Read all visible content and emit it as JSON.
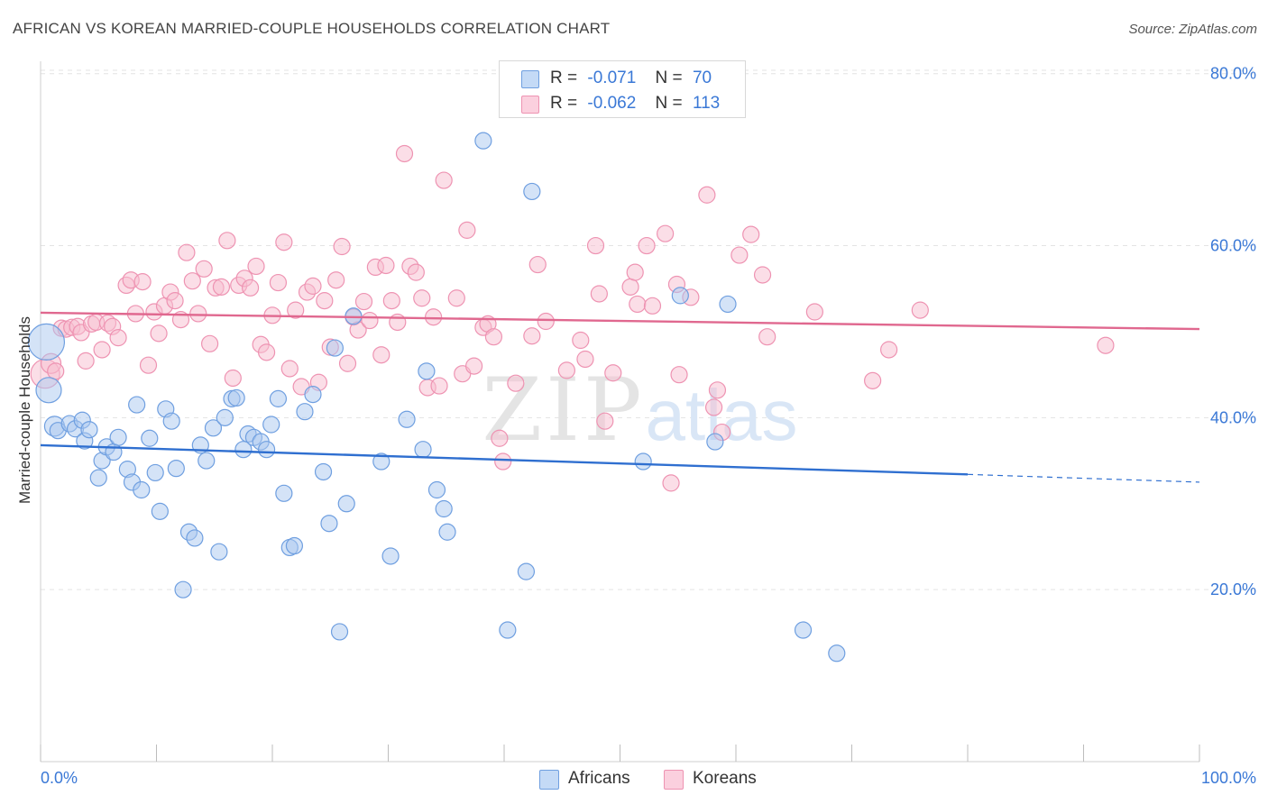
{
  "title": "AFRICAN VS KOREAN MARRIED-COUPLE HOUSEHOLDS CORRELATION CHART",
  "source": "Source: ZipAtlas.com",
  "watermark": {
    "zip": "ZIP",
    "atlas": "atlas"
  },
  "legend": {
    "africans": {
      "r_label": "R =",
      "r_value": "-0.071",
      "n_label": "N =",
      "n_value": "70"
    },
    "koreans": {
      "r_label": "R =",
      "r_value": "-0.062",
      "n_label": "N =",
      "n_value": "113"
    }
  },
  "colors": {
    "africans_fill": "#a9c8f0",
    "africans_stroke": "#6f9fe0",
    "africans_line": "#2f6fd0",
    "koreans_fill": "#f7bdd0",
    "koreans_stroke": "#ee93b2",
    "koreans_line": "#e0688f",
    "grid": "#e3e3e3",
    "axis_text": "#3a78d6"
  },
  "chart_data": {
    "type": "scatter",
    "title": "AFRICAN VS KOREAN MARRIED-COUPLE HOUSEHOLDS CORRELATION CHART",
    "xlabel": "",
    "ylabel": "Married-couple Households",
    "xlim": [
      0,
      100
    ],
    "ylim": [
      0,
      85
    ],
    "x_tick_labels": [
      "0.0%",
      "100.0%"
    ],
    "y_ticks": [
      20,
      40,
      60,
      80
    ],
    "y_tick_labels": [
      "20.0%",
      "40.0%",
      "60.0%",
      "80.0%"
    ],
    "grid": true,
    "legend_position": "top-center",
    "series": [
      {
        "name": "Africans",
        "r": -0.071,
        "n": 70,
        "trend": {
          "x0": 0,
          "y0": 36.8,
          "x1": 80,
          "y1": 33.4,
          "dashed_to": 100,
          "dashed_y": 32.5
        },
        "points": [
          [
            0.5,
            48.8,
            20
          ],
          [
            0.7,
            43.2,
            14
          ],
          [
            1.2,
            39.0,
            11
          ],
          [
            1.5,
            38.5,
            9
          ],
          [
            2.5,
            39.3,
            9
          ],
          [
            3.0,
            38.7,
            9
          ],
          [
            3.6,
            39.7,
            9
          ],
          [
            3.8,
            37.3,
            9
          ],
          [
            4.2,
            38.6,
            9
          ],
          [
            5.0,
            33.0,
            9
          ],
          [
            5.3,
            35.0,
            9
          ],
          [
            5.7,
            36.6,
            9
          ],
          [
            6.3,
            36.0,
            9
          ],
          [
            6.7,
            37.7,
            9
          ],
          [
            7.5,
            34.0,
            9
          ],
          [
            7.9,
            32.5,
            9
          ],
          [
            8.3,
            41.5,
            9
          ],
          [
            8.7,
            31.6,
            9
          ],
          [
            9.4,
            37.6,
            9
          ],
          [
            9.9,
            33.6,
            9
          ],
          [
            10.3,
            29.1,
            9
          ],
          [
            10.8,
            41.0,
            9
          ],
          [
            11.3,
            39.6,
            9
          ],
          [
            11.7,
            34.1,
            9
          ],
          [
            12.3,
            20.0,
            9
          ],
          [
            12.8,
            26.7,
            9
          ],
          [
            13.3,
            26.0,
            9
          ],
          [
            13.8,
            36.8,
            9
          ],
          [
            14.3,
            35.0,
            9
          ],
          [
            14.9,
            38.8,
            9
          ],
          [
            15.4,
            24.4,
            9
          ],
          [
            15.9,
            40.0,
            9
          ],
          [
            16.5,
            42.2,
            9
          ],
          [
            16.9,
            42.3,
            9
          ],
          [
            17.5,
            36.3,
            9
          ],
          [
            17.9,
            38.1,
            9
          ],
          [
            18.4,
            37.7,
            9
          ],
          [
            19.0,
            37.2,
            9
          ],
          [
            19.5,
            36.3,
            9
          ],
          [
            19.9,
            39.2,
            9
          ],
          [
            20.5,
            42.2,
            9
          ],
          [
            21.0,
            31.2,
            9
          ],
          [
            21.5,
            24.9,
            9
          ],
          [
            21.9,
            25.1,
            9
          ],
          [
            22.8,
            40.7,
            9
          ],
          [
            23.5,
            42.7,
            9
          ],
          [
            24.4,
            33.7,
            9
          ],
          [
            24.9,
            27.7,
            9
          ],
          [
            25.4,
            48.1,
            9
          ],
          [
            25.8,
            15.1,
            9
          ],
          [
            26.4,
            30.0,
            9
          ],
          [
            27.0,
            51.8,
            9
          ],
          [
            29.4,
            34.9,
            9
          ],
          [
            30.2,
            23.9,
            9
          ],
          [
            31.6,
            39.8,
            9
          ],
          [
            33.0,
            36.3,
            9
          ],
          [
            33.3,
            45.4,
            9
          ],
          [
            34.2,
            31.6,
            9
          ],
          [
            34.8,
            29.4,
            9
          ],
          [
            35.1,
            26.7,
            9
          ],
          [
            38.2,
            72.2,
            9
          ],
          [
            40.3,
            15.3,
            9
          ],
          [
            41.9,
            22.1,
            9
          ],
          [
            42.4,
            66.3,
            9
          ],
          [
            52.0,
            34.9,
            9
          ],
          [
            55.2,
            54.2,
            9
          ],
          [
            58.2,
            37.2,
            9
          ],
          [
            59.3,
            53.2,
            9
          ],
          [
            65.8,
            15.3,
            9
          ],
          [
            68.7,
            12.6,
            9
          ]
        ]
      },
      {
        "name": "Koreans",
        "r": -0.062,
        "n": 113,
        "trend": {
          "x0": 0,
          "y0": 52.2,
          "x1": 100,
          "y1": 50.3
        },
        "points": [
          [
            0.4,
            45.1,
            16
          ],
          [
            0.9,
            46.3,
            11
          ],
          [
            1.3,
            45.4,
            9
          ],
          [
            1.8,
            50.4,
            9
          ],
          [
            2.2,
            50.3,
            9
          ],
          [
            2.7,
            50.5,
            9
          ],
          [
            3.2,
            50.6,
            9
          ],
          [
            3.5,
            49.9,
            9
          ],
          [
            3.9,
            46.6,
            9
          ],
          [
            4.4,
            50.9,
            9
          ],
          [
            4.8,
            51.1,
            9
          ],
          [
            5.3,
            47.9,
            9
          ],
          [
            5.8,
            51.0,
            9
          ],
          [
            6.2,
            50.6,
            9
          ],
          [
            6.7,
            49.3,
            9
          ],
          [
            7.4,
            55.4,
            9
          ],
          [
            7.8,
            56.0,
            9
          ],
          [
            8.2,
            52.1,
            9
          ],
          [
            8.8,
            55.8,
            9
          ],
          [
            9.3,
            46.1,
            9
          ],
          [
            9.8,
            52.3,
            9
          ],
          [
            10.2,
            49.8,
            9
          ],
          [
            10.7,
            53.0,
            9
          ],
          [
            11.2,
            54.6,
            9
          ],
          [
            11.6,
            53.6,
            9
          ],
          [
            12.1,
            51.4,
            9
          ],
          [
            12.6,
            59.2,
            9
          ],
          [
            13.1,
            55.9,
            9
          ],
          [
            13.6,
            52.1,
            9
          ],
          [
            14.1,
            57.3,
            9
          ],
          [
            14.6,
            48.6,
            9
          ],
          [
            15.1,
            55.1,
            9
          ],
          [
            15.6,
            55.2,
            9
          ],
          [
            16.1,
            60.6,
            9
          ],
          [
            16.6,
            44.6,
            9
          ],
          [
            17.1,
            55.4,
            9
          ],
          [
            17.6,
            56.2,
            9
          ],
          [
            18.1,
            55.1,
            9
          ],
          [
            18.6,
            57.6,
            9
          ],
          [
            19.0,
            48.5,
            9
          ],
          [
            19.5,
            47.6,
            9
          ],
          [
            20.0,
            51.9,
            9
          ],
          [
            20.5,
            55.7,
            9
          ],
          [
            21.0,
            60.4,
            9
          ],
          [
            21.5,
            45.7,
            9
          ],
          [
            22.0,
            52.5,
            9
          ],
          [
            22.5,
            43.6,
            9
          ],
          [
            23.0,
            54.6,
            9
          ],
          [
            23.5,
            55.3,
            9
          ],
          [
            24.0,
            44.1,
            9
          ],
          [
            24.5,
            53.6,
            9
          ],
          [
            25.0,
            48.2,
            9
          ],
          [
            25.5,
            56.0,
            9
          ],
          [
            26.0,
            59.9,
            9
          ],
          [
            26.5,
            46.3,
            9
          ],
          [
            27.0,
            51.7,
            9
          ],
          [
            27.4,
            50.2,
            9
          ],
          [
            27.9,
            53.5,
            9
          ],
          [
            28.4,
            51.3,
            9
          ],
          [
            28.9,
            57.5,
            9
          ],
          [
            29.4,
            47.3,
            9
          ],
          [
            29.8,
            57.7,
            9
          ],
          [
            30.3,
            53.6,
            9
          ],
          [
            30.8,
            51.1,
            9
          ],
          [
            31.4,
            70.7,
            9
          ],
          [
            31.9,
            57.6,
            9
          ],
          [
            32.4,
            56.9,
            9
          ],
          [
            32.9,
            53.9,
            9
          ],
          [
            33.4,
            43.5,
            9
          ],
          [
            33.9,
            51.7,
            9
          ],
          [
            34.4,
            43.7,
            9
          ],
          [
            34.8,
            67.6,
            9
          ],
          [
            35.9,
            53.9,
            9
          ],
          [
            36.4,
            45.1,
            9
          ],
          [
            36.8,
            61.8,
            9
          ],
          [
            37.4,
            46.0,
            9
          ],
          [
            38.2,
            50.5,
            9
          ],
          [
            38.6,
            50.9,
            9
          ],
          [
            39.1,
            49.4,
            9
          ],
          [
            39.6,
            37.6,
            9
          ],
          [
            39.9,
            34.9,
            9
          ],
          [
            41.0,
            44.0,
            9
          ],
          [
            42.4,
            49.5,
            9
          ],
          [
            42.9,
            57.8,
            9
          ],
          [
            43.6,
            51.2,
            9
          ],
          [
            45.4,
            45.5,
            9
          ],
          [
            46.6,
            49.0,
            9
          ],
          [
            47.0,
            46.8,
            9
          ],
          [
            47.9,
            60.0,
            9
          ],
          [
            48.2,
            54.4,
            9
          ],
          [
            48.7,
            39.6,
            9
          ],
          [
            49.4,
            45.2,
            9
          ],
          [
            50.9,
            55.2,
            9
          ],
          [
            51.3,
            56.9,
            9
          ],
          [
            51.5,
            53.2,
            9
          ],
          [
            52.3,
            60.0,
            9
          ],
          [
            52.8,
            53.0,
            9
          ],
          [
            53.9,
            61.4,
            9
          ],
          [
            54.4,
            32.4,
            9
          ],
          [
            54.9,
            55.5,
            9
          ],
          [
            55.1,
            45.0,
            9
          ],
          [
            56.1,
            54.0,
            9
          ],
          [
            57.5,
            65.9,
            9
          ],
          [
            58.1,
            41.2,
            9
          ],
          [
            58.4,
            43.2,
            9
          ],
          [
            58.8,
            38.3,
            9
          ],
          [
            60.3,
            58.9,
            9
          ],
          [
            61.3,
            61.3,
            9
          ],
          [
            62.3,
            56.6,
            9
          ],
          [
            62.7,
            49.4,
            9
          ],
          [
            66.8,
            52.3,
            9
          ],
          [
            71.8,
            44.3,
            9
          ],
          [
            73.2,
            47.9,
            9
          ],
          [
            75.9,
            52.5,
            9
          ],
          [
            91.9,
            48.4,
            9
          ]
        ]
      }
    ]
  }
}
